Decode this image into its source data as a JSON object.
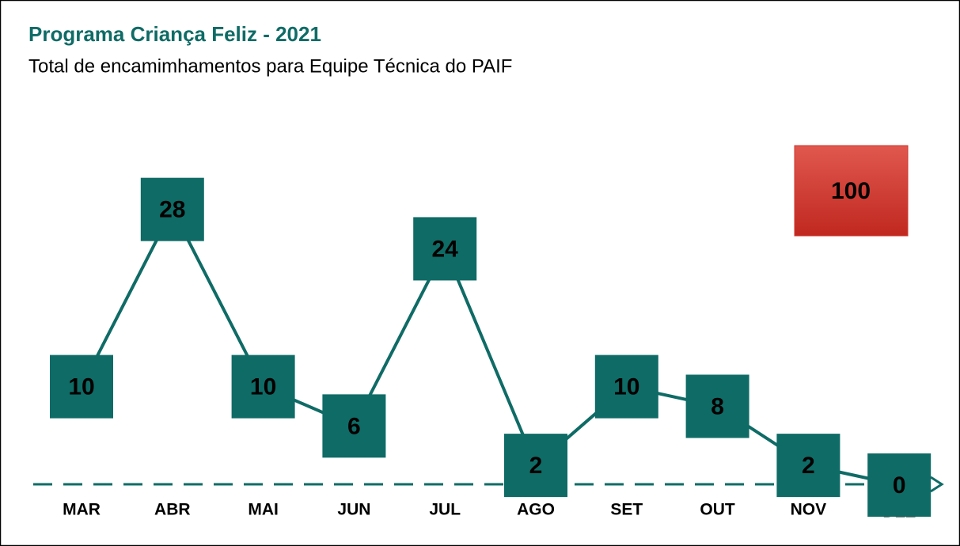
{
  "chart_data": {
    "type": "line",
    "title": "Programa Criança Feliz - 2021",
    "subtitle": "Total de encamimhamentos para Equipe Técnica do PAIF",
    "categories": [
      "MAR",
      "ABR",
      "MAI",
      "JUN",
      "JUL",
      "AGO",
      "SET",
      "OUT",
      "NOV",
      "DEZ"
    ],
    "values": [
      10,
      28,
      10,
      6,
      24,
      2,
      10,
      8,
      2,
      0
    ],
    "color": "#0f6b66",
    "total": 100,
    "total_color": "#d0342c"
  }
}
